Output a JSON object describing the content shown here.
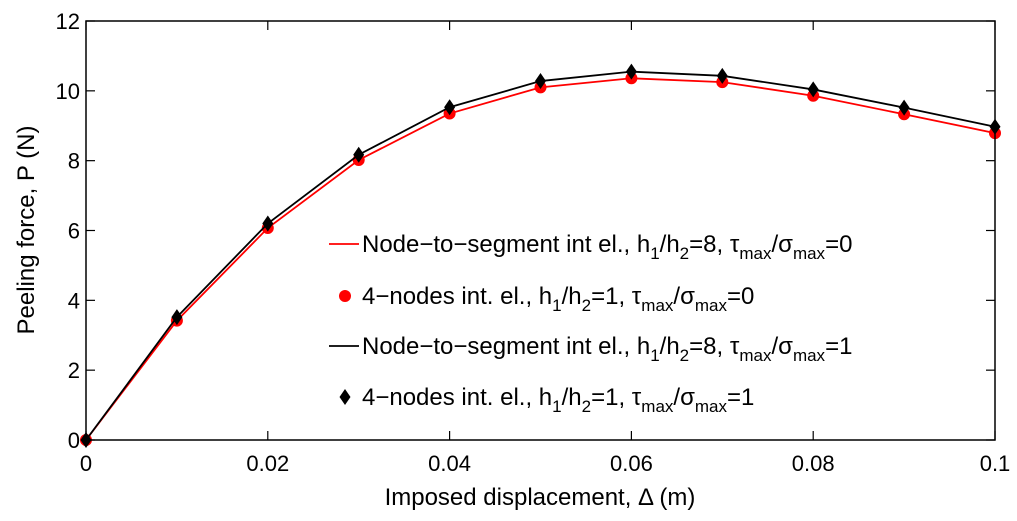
{
  "chart_data": {
    "type": "line",
    "xlabel": "Imposed displacement, Δ (m)",
    "ylabel": "Peeling force, P (N)",
    "xlim": [
      0,
      0.1
    ],
    "ylim": [
      0,
      12
    ],
    "xticks": [
      0,
      0.02,
      0.04,
      0.06,
      0.08,
      0.1
    ],
    "xtick_labels": [
      "0",
      "0.02",
      "0.04",
      "0.06",
      "0.08",
      "0.1"
    ],
    "yticks": [
      0,
      2,
      4,
      6,
      8,
      10,
      12
    ],
    "ytick_labels": [
      "0",
      "2",
      "4",
      "6",
      "8",
      "10",
      "12"
    ],
    "grid": false,
    "legend_position": "center-right",
    "series": [
      {
        "name": "Node−to−segment int el., h1/h2=8, τmax/σmax=0",
        "style": "line",
        "color": "#ff0000",
        "x": [
          0,
          0.01,
          0.02,
          0.03,
          0.04,
          0.05,
          0.06,
          0.07,
          0.08,
          0.09,
          0.1
        ],
        "y": [
          0,
          3.42,
          6.07,
          8.02,
          9.35,
          10.1,
          10.36,
          10.25,
          9.86,
          9.33,
          8.79
        ]
      },
      {
        "name": "4−nodes int. el., h1/h2=1, τmax/σmax=0",
        "style": "marker-circle",
        "color": "#ff0000",
        "x": [
          0,
          0.01,
          0.02,
          0.03,
          0.04,
          0.05,
          0.06,
          0.07,
          0.08,
          0.09,
          0.1
        ],
        "y": [
          0,
          3.42,
          6.07,
          8.02,
          9.35,
          10.1,
          10.36,
          10.25,
          9.86,
          9.33,
          8.79
        ]
      },
      {
        "name": "Node−to−segment int el., h1/h2=8, τmax/σmax=1",
        "style": "line",
        "color": "#000000",
        "x": [
          0,
          0.01,
          0.02,
          0.03,
          0.04,
          0.05,
          0.06,
          0.07,
          0.08,
          0.09,
          0.1
        ],
        "y": [
          0,
          3.52,
          6.2,
          8.17,
          9.53,
          10.28,
          10.55,
          10.43,
          10.04,
          9.52,
          8.97
        ]
      },
      {
        "name": "4−nodes int. el., h1/h2=1, τmax/σmax=1",
        "style": "marker-diamond",
        "color": "#000000",
        "x": [
          0,
          0.01,
          0.02,
          0.03,
          0.04,
          0.05,
          0.06,
          0.07,
          0.08,
          0.09,
          0.1
        ],
        "y": [
          0,
          3.52,
          6.2,
          8.17,
          9.53,
          10.28,
          10.55,
          10.43,
          10.04,
          9.52,
          8.97
        ]
      }
    ],
    "legend": [
      {
        "symbol": "line",
        "color": "#ff0000",
        "parts": [
          "Node−to−segment int el., h",
          "1",
          "/h",
          "2",
          "=8, τ",
          "max",
          "/σ",
          "max",
          "=0"
        ]
      },
      {
        "symbol": "circle",
        "color": "#ff0000",
        "parts": [
          "4−nodes int. el., h",
          "1",
          "/h",
          "2",
          "=1, τ",
          "max",
          "/σ",
          "max",
          "=0"
        ]
      },
      {
        "symbol": "line",
        "color": "#000000",
        "parts": [
          "Node−to−segment int el., h",
          "1",
          "/h",
          "2",
          "=8, τ",
          "max",
          "/σ",
          "max",
          "=1"
        ]
      },
      {
        "symbol": "diamond",
        "color": "#000000",
        "parts": [
          "4−nodes int. el., h",
          "1",
          "/h",
          "2",
          "=1, τ",
          "max",
          "/σ",
          "max",
          "=1"
        ]
      }
    ]
  }
}
